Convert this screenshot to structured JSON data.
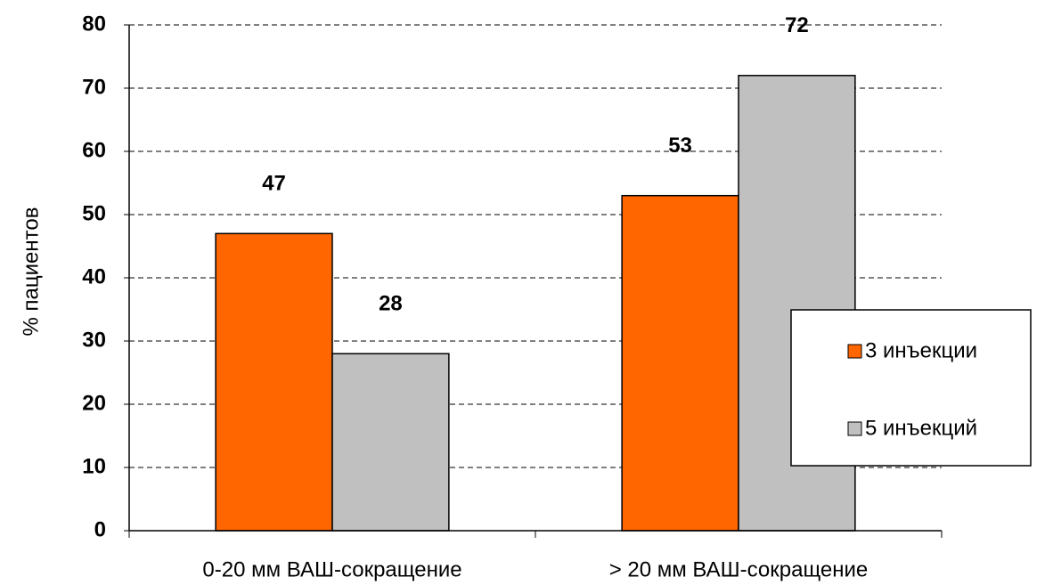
{
  "chart_data": {
    "type": "bar",
    "y_label": "% пациентов",
    "categories": [
      "0-20 мм ВАШ-сокращение",
      "> 20 мм ВАШ-сокращение"
    ],
    "series": [
      {
        "name": "3 инъекции",
        "color": "#ff6600",
        "values": [
          47,
          53
        ]
      },
      {
        "name": "5 инъекций",
        "color": "#c0c0c0",
        "values": [
          28,
          72
        ]
      }
    ],
    "ylim": [
      0,
      80
    ],
    "yticks": [
      0,
      10,
      20,
      30,
      40,
      50,
      60,
      70,
      80
    ],
    "grid": true,
    "legend": "right"
  }
}
